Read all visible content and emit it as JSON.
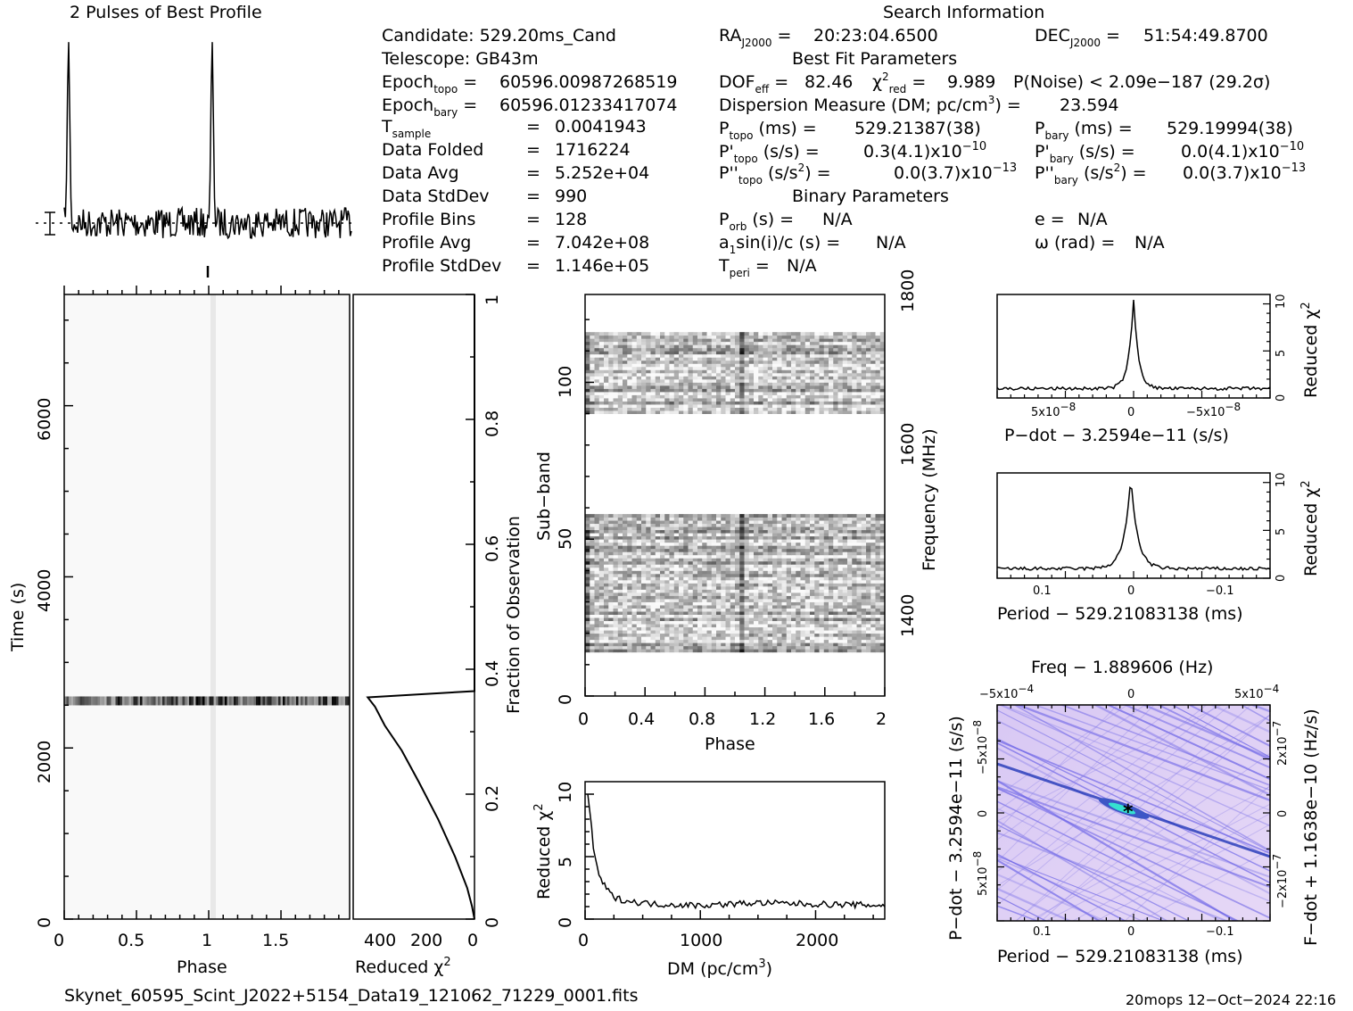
{
  "titles": {
    "profile": "2 Pulses of Best Profile",
    "search": "Search Information",
    "best_fit": "Best Fit Parameters",
    "binary": "Binary Parameters"
  },
  "info_left": [
    {
      "label": "Candidate:",
      "value": "529.20ms_Cand"
    },
    {
      "label": "Telescope:",
      "value": "GB43m"
    },
    {
      "label": "Epoch_topo",
      "eq": "=",
      "value": "60596.0098726851 9"
    },
    {
      "label": "Epoch_bary",
      "eq": "=",
      "value": "60596.01233417074"
    },
    {
      "label": "T_sample",
      "eq": "=",
      "value": "0.0041943"
    },
    {
      "label": "Data Folded",
      "eq": "=",
      "value": "1716224"
    },
    {
      "label": "Data Avg",
      "eq": "=",
      "value": "5.252e+04"
    },
    {
      "label": "Data StdDev",
      "eq": "=",
      "value": "990"
    },
    {
      "label": "Profile Bins",
      "eq": "=",
      "value": "128"
    },
    {
      "label": "Profile Avg",
      "eq": "=",
      "value": "7.042e+08"
    },
    {
      "label": "Profile StdDev",
      "eq": "=",
      "value": "1.146e+05"
    }
  ],
  "info": {
    "candidate": "Candidate:  529.20ms_Cand",
    "telescope": "Telescope:  GB43m",
    "epoch_topo": "60596.00987268519",
    "epoch_bary": "60596.01233417074",
    "t_sample": "0.0041943",
    "data_folded": "1716224",
    "data_avg": "5.252e+04",
    "data_stddev": "990",
    "profile_bins": "128",
    "profile_avg": "7.042e+08",
    "profile_stddev": "1.146e+05",
    "ra": "20:23:04.6500",
    "dec": "51:54:49.8700",
    "dof_eff": "82.46",
    "chi2_red": "9.989",
    "p_noise": "P(Noise) < 2.09e−187  (29.2σ)",
    "dm_text": "23.594",
    "p_topo": "529.21387(38)",
    "p_bary": "529.19994(38)",
    "pd_topo": "0.3(4.1)x10",
    "pd_topo_exp": "−10",
    "pd_bary": "0.0(4.1)x10",
    "pd_bary_exp": "−10",
    "pdd_topo": "0.0(3.7)x10",
    "pdd_topo_exp": "−13",
    "pdd_bary": "0.0(3.7)x10",
    "pdd_bary_exp": "−13",
    "p_orb": "N/A",
    "e": "N/A",
    "a1": "N/A",
    "omega": "N/A",
    "t_peri": "N/A"
  },
  "footer": {
    "filename": "Skynet_60595_Scint_J2022+5154_Data19_121062_71229_0001.fits",
    "stamp": "20mops 12−Oct−2024 22:16"
  },
  "axes": {
    "phase": "Phase",
    "time": "Time (s)",
    "reduced_chi2": "Reduced χ",
    "fraction": "Fraction of Observation",
    "subband": "Sub−band",
    "frequency": "Frequency (MHz)",
    "dm": "DM (pc/cm",
    "pdot_label": "P−dot − 3.2594e−11 (s/s)",
    "period_label": "Period − 529.21083138 (ms)",
    "freq_label": "Freq − 1.889606 (Hz)",
    "fdot_label": "F−dot + 1.1638e−10 (Hz/s)"
  },
  "chart_data": [
    {
      "type": "line",
      "name": "profile",
      "title": "2 Pulses of Best Profile",
      "x": "phase 0–2",
      "peaks_at_phase": [
        0.03,
        1.03
      ]
    },
    {
      "type": "heatmap",
      "name": "time-phase",
      "xlabel": "Phase",
      "ylabel": "Time (s)",
      "xlim": [
        0,
        2
      ],
      "ylim": [
        0,
        7100
      ],
      "xticks": [
        "0",
        "0.5",
        "1",
        "1.5"
      ],
      "yticks": [
        "0",
        "2000",
        "4000",
        "6000"
      ],
      "bright_band_time": 2550
    },
    {
      "type": "line",
      "name": "reduced-chi2-vs-fraction",
      "xlabel": "Reduced χ2",
      "ylabel": "Fraction of Observation",
      "xlim": [
        500,
        0
      ],
      "ylim": [
        0,
        1
      ],
      "xticks": [
        "400",
        "200",
        "0"
      ],
      "yticks": [
        "0.2",
        "0.4",
        "0.6",
        "0.8",
        "1"
      ],
      "points": [
        [
          0,
          0
        ],
        [
          10,
          0.02
        ],
        [
          30,
          0.05
        ],
        [
          80,
          0.1
        ],
        [
          150,
          0.16
        ],
        [
          230,
          0.22
        ],
        [
          300,
          0.27
        ],
        [
          370,
          0.31
        ],
        [
          410,
          0.34
        ],
        [
          440,
          0.355
        ],
        [
          0,
          0.365
        ],
        [
          0,
          1
        ]
      ]
    },
    {
      "type": "heatmap",
      "name": "subband-phase",
      "xlabel": "Phase",
      "ylabel": "Sub−band",
      "y2label": "Frequency (MHz)",
      "xlim": [
        0,
        2
      ],
      "ylim": [
        0,
        128
      ],
      "xticks": [
        "0",
        "0.4",
        "0.8",
        "1.2",
        "1.6",
        "2"
      ],
      "yticks": [
        "0",
        "50",
        "100"
      ],
      "y2ticks": [
        "1400",
        "1600",
        "1800"
      ],
      "bands": [
        [
          14,
          58
        ],
        [
          90,
          116
        ]
      ]
    },
    {
      "type": "line",
      "name": "dm-curve",
      "xlabel": "DM (pc/cm3)",
      "ylabel": "Reduced χ2",
      "xlim": [
        0,
        2600
      ],
      "ylim": [
        0,
        11
      ],
      "xticks": [
        "0",
        "1000",
        "2000"
      ],
      "yticks": [
        "0",
        "5",
        "10"
      ],
      "points": [
        [
          24,
          10
        ],
        [
          50,
          8
        ],
        [
          80,
          5
        ],
        [
          120,
          3.5
        ],
        [
          180,
          2.5
        ],
        [
          250,
          1.7
        ],
        [
          400,
          1.4
        ],
        [
          600,
          1.2
        ],
        [
          1000,
          1.1
        ],
        [
          1500,
          1.3
        ],
        [
          2000,
          1.2
        ],
        [
          2600,
          1.1
        ]
      ]
    },
    {
      "type": "line",
      "name": "pdot-curve",
      "xlabel": "P−dot − 3.2594e−11 (s/s)",
      "ylabel": "Reduced χ2",
      "xticks": [
        "5x10−8",
        "0",
        "−5x10−8"
      ],
      "yticks": [
        "0",
        "5",
        "10"
      ],
      "peak": 10
    },
    {
      "type": "line",
      "name": "period-curve",
      "xlabel": "Period − 529.21083138 (ms)",
      "ylabel": "Reduced χ2",
      "xticks": [
        "0.1",
        "0",
        "−0.1"
      ],
      "yticks": [
        "0",
        "5",
        "10"
      ],
      "peak": 10
    },
    {
      "type": "heatmap",
      "name": "p-pdot-plane",
      "xlabel": "Period − 529.21083138 (ms)",
      "ylabel": "P−dot − 3.2594e−11 (s/s)",
      "x2label": "Freq − 1.889606 (Hz)",
      "y2label": "F−dot + 1.1638e−10 (Hz/s)",
      "xticks": [
        "0.1",
        "0",
        "−0.1"
      ],
      "yticks": [
        "−5x10−8",
        "0",
        "5x10−8"
      ],
      "x2ticks": [
        "−5x10−4",
        "0",
        "5x10−4"
      ],
      "y2ticks": [
        "2x10−7",
        "0",
        "−2x10−7"
      ]
    }
  ]
}
